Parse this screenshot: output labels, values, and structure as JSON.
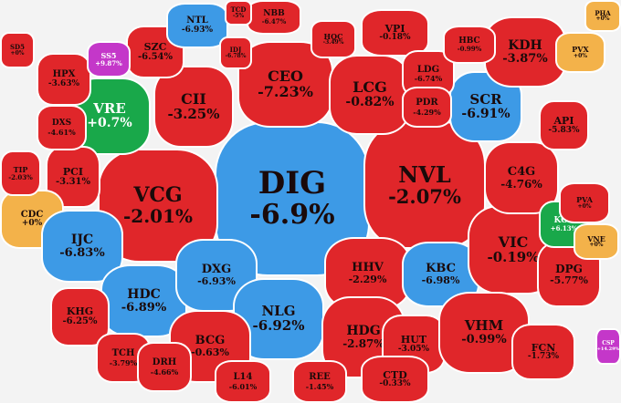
{
  "colors": {
    "down": "#e0262a",
    "floor": "#3d9ae6",
    "up": "#19a84a",
    "flat": "#f3b24a",
    "ceiling": "#c437c9"
  },
  "tiles": [
    {
      "key": "dig",
      "sym": "DIG",
      "pct": "-6.9%"
    },
    {
      "key": "nvl",
      "sym": "NVL",
      "pct": "-2.07%"
    },
    {
      "key": "vcg",
      "sym": "VCG",
      "pct": "-2.01%"
    },
    {
      "key": "ceo",
      "sym": "CEO",
      "pct": "-7.23%"
    },
    {
      "key": "cii",
      "sym": "CII",
      "pct": "-3.25%"
    },
    {
      "key": "lcg",
      "sym": "LCG",
      "pct": "-0.82%"
    },
    {
      "key": "vre",
      "sym": "VRE",
      "pct": "+0.7%"
    },
    {
      "key": "scr",
      "sym": "SCR",
      "pct": "-6.91%"
    },
    {
      "key": "kdh",
      "sym": "KDH",
      "pct": "-3.87%"
    },
    {
      "key": "szc",
      "sym": "SZC",
      "pct": "-6.54%"
    },
    {
      "key": "ntl",
      "sym": "NTL",
      "pct": "-6.93%"
    },
    {
      "key": "hpx",
      "sym": "HPX",
      "pct": "-3.63%"
    },
    {
      "key": "pci",
      "sym": "PCI",
      "pct": "-3.31%"
    },
    {
      "key": "cdc",
      "sym": "CDC",
      "pct": "+0%"
    },
    {
      "key": "ijc",
      "sym": "IJC",
      "pct": "-6.83%"
    },
    {
      "key": "hdc",
      "sym": "HDC",
      "pct": "-6.89%"
    },
    {
      "key": "dxg",
      "sym": "DXG",
      "pct": "-6.93%"
    },
    {
      "key": "nlg",
      "sym": "NLG",
      "pct": "-6.92%"
    },
    {
      "key": "hhv",
      "sym": "HHV",
      "pct": "-2.29%"
    },
    {
      "key": "kbc",
      "sym": "KBC",
      "pct": "-6.98%"
    },
    {
      "key": "vic",
      "sym": "VIC",
      "pct": "-0.19%"
    },
    {
      "key": "c4g",
      "sym": "C4G",
      "pct": "-4.76%"
    },
    {
      "key": "api",
      "sym": "API",
      "pct": "-5.83%"
    },
    {
      "key": "dpg",
      "sym": "DPG",
      "pct": "-5.77%"
    },
    {
      "key": "khg",
      "sym": "KHG",
      "pct": "-6.25%"
    },
    {
      "key": "bcg",
      "sym": "BCG",
      "pct": "-0.63%"
    },
    {
      "key": "hdg",
      "sym": "HDG",
      "pct": "-2.87%"
    },
    {
      "key": "hut",
      "sym": "HUT",
      "pct": "-3.05%"
    },
    {
      "key": "vhm",
      "sym": "VHM",
      "pct": "-0.99%"
    },
    {
      "key": "fcn",
      "sym": "FCN",
      "pct": "-1.73%"
    },
    {
      "key": "tch",
      "sym": "TCH",
      "pct": "-3.79%"
    },
    {
      "key": "drh",
      "sym": "DRH",
      "pct": "-4.66%"
    },
    {
      "key": "l14",
      "sym": "L14",
      "pct": "-6.01%"
    },
    {
      "key": "ree",
      "sym": "REE",
      "pct": "-1.45%"
    },
    {
      "key": "ctd",
      "sym": "CTD",
      "pct": "-0.33%"
    },
    {
      "key": "vpi",
      "sym": "VPI",
      "pct": "-0.18%"
    },
    {
      "key": "ldg",
      "sym": "LDG",
      "pct": "-6.74%"
    },
    {
      "key": "pdr",
      "sym": "PDR",
      "pct": "-4.29%"
    },
    {
      "key": "hbc",
      "sym": "HBC",
      "pct": "-0.99%"
    },
    {
      "key": "nbb",
      "sym": "NBB",
      "pct": "-6.47%"
    },
    {
      "key": "dxs",
      "sym": "DXS",
      "pct": "-4.61%"
    },
    {
      "key": "tip",
      "sym": "TIP",
      "pct": "-2.03%"
    },
    {
      "key": "ss5",
      "sym": "SS5",
      "pct": "+9.87%"
    },
    {
      "key": "idj",
      "sym": "IDJ",
      "pct": "-6.78%"
    },
    {
      "key": "hqc",
      "sym": "HQC",
      "pct": "-3.49%"
    },
    {
      "key": "kos",
      "sym": "KOS",
      "pct": "+6.13%"
    },
    {
      "key": "vne",
      "sym": "VNE",
      "pct": "+0%"
    },
    {
      "key": "pva",
      "sym": "PVA",
      "pct": "+0%"
    },
    {
      "key": "pvx",
      "sym": "PVX",
      "pct": "+0%"
    },
    {
      "key": "sd5",
      "sym": "SD5",
      "pct": "+0%"
    },
    {
      "key": "tcd",
      "sym": "TCD",
      "pct": "-5%"
    },
    {
      "key": "csp",
      "sym": "CSP",
      "pct": "+14.29%"
    },
    {
      "key": "pha",
      "sym": "PHA",
      "pct": "+0%"
    }
  ]
}
